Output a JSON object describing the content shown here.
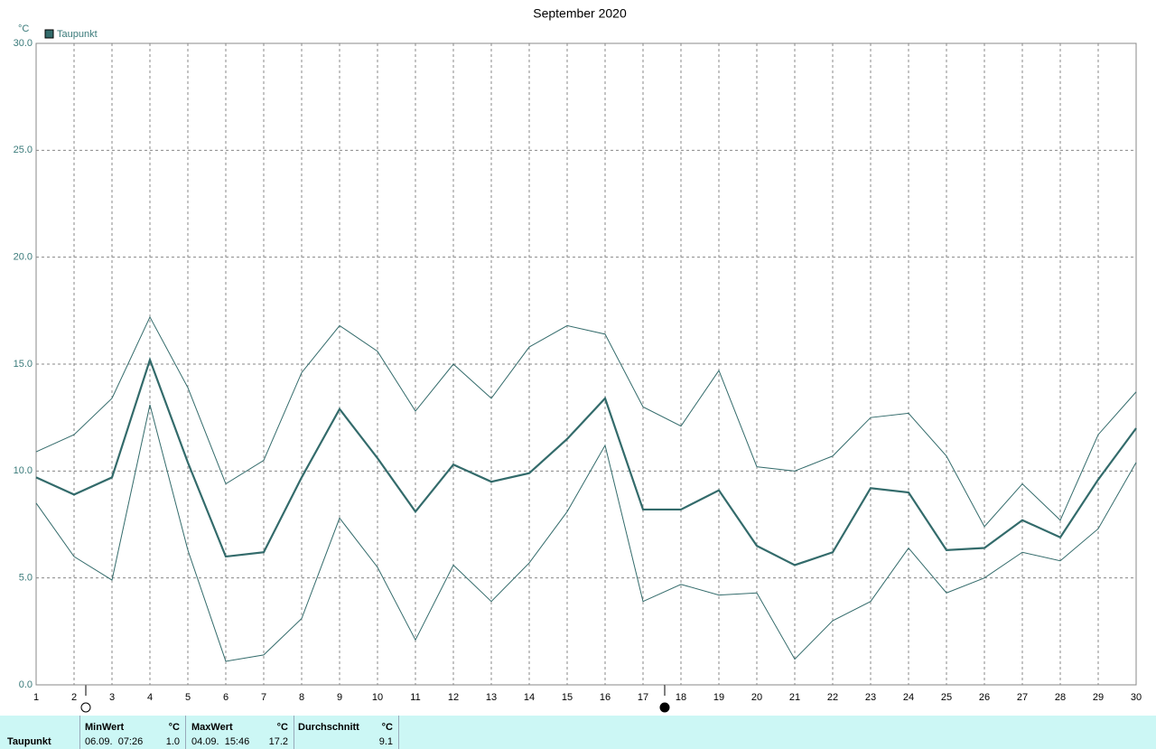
{
  "chart_data": {
    "type": "line",
    "title": "September 2020",
    "unit": "°C",
    "grid": true,
    "x": [
      1,
      2,
      3,
      4,
      5,
      6,
      7,
      8,
      9,
      10,
      11,
      12,
      13,
      14,
      15,
      16,
      17,
      18,
      19,
      20,
      21,
      22,
      23,
      24,
      25,
      26,
      27,
      28,
      29,
      30
    ],
    "xlim": [
      1,
      30
    ],
    "xticks": [
      1,
      2,
      3,
      4,
      5,
      6,
      7,
      8,
      9,
      10,
      11,
      12,
      13,
      14,
      15,
      16,
      17,
      18,
      19,
      20,
      21,
      22,
      23,
      24,
      25,
      26,
      27,
      28,
      29,
      30
    ],
    "ylim": [
      0,
      30
    ],
    "yticks": [
      {
        "value": 0,
        "label": "0.0"
      },
      {
        "value": 5,
        "label": "5.0"
      },
      {
        "value": 10,
        "label": "10.0"
      },
      {
        "value": 15,
        "label": "15.0"
      },
      {
        "value": 20,
        "label": "20.0"
      },
      {
        "value": 25,
        "label": "25.0"
      },
      {
        "value": 30,
        "label": "30.0"
      }
    ],
    "series": [
      {
        "name": "Taupunkt",
        "color": "#336b6b",
        "values": [
          9.7,
          8.9,
          9.7,
          15.2,
          10.4,
          6.0,
          6.2,
          9.7,
          12.9,
          10.6,
          8.1,
          10.3,
          9.5,
          9.9,
          11.5,
          13.4,
          8.2,
          8.2,
          9.1,
          6.5,
          5.6,
          6.2,
          9.2,
          9.0,
          6.3,
          6.4,
          7.7,
          6.9,
          9.6,
          12.0
        ]
      },
      {
        "color": "#336b6b",
        "values": [
          10.9,
          11.7,
          13.4,
          17.2,
          13.9,
          9.4,
          10.5,
          14.6,
          16.8,
          15.6,
          12.8,
          15.0,
          13.4,
          15.8,
          16.8,
          16.4,
          13.0,
          12.1,
          14.7,
          10.2,
          10.0,
          10.7,
          12.5,
          12.7,
          10.7,
          7.4,
          9.4,
          7.7,
          11.7,
          13.7
        ]
      },
      {
        "color": "#336b6b",
        "values": [
          8.5,
          6.0,
          4.9,
          13.1,
          6.3,
          1.1,
          1.4,
          3.1,
          7.8,
          5.5,
          2.1,
          5.6,
          3.9,
          5.7,
          8.1,
          11.2,
          3.9,
          4.7,
          4.2,
          4.3,
          1.2,
          3.0,
          3.9,
          6.4,
          4.3,
          5.0,
          6.2,
          5.8,
          7.3,
          10.4
        ]
      }
    ]
  },
  "stats": {
    "row_label": "Taupunkt",
    "min": {
      "header": "MinWert",
      "unit": "°C",
      "time": "06.09.  07:26",
      "value": "1.0"
    },
    "max": {
      "header": "MaxWert",
      "unit": "°C",
      "time": "04.09.  15:46",
      "value": "17.2"
    },
    "avg": {
      "header": "Durchschnitt",
      "unit": "°C",
      "value": "9.1"
    }
  }
}
